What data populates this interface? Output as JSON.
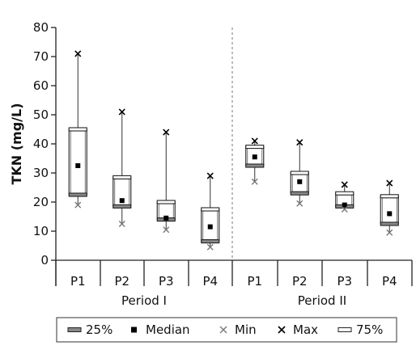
{
  "chart_data": {
    "type": "box",
    "ylabel": "TKN (mg/L)",
    "ylim": [
      0,
      80
    ],
    "yticks": [
      0,
      10,
      20,
      30,
      40,
      50,
      60,
      70,
      80
    ],
    "groups": [
      {
        "label": "Period I",
        "categories": [
          "P1",
          "P2",
          "P3",
          "P4"
        ]
      },
      {
        "label": "Period II",
        "categories": [
          "P1",
          "P2",
          "P3",
          "P4"
        ]
      }
    ],
    "boxes": [
      {
        "group": "Period I",
        "category": "P1",
        "min": 19.0,
        "q25": 22.5,
        "median": 32.5,
        "q75": 45.0,
        "max": 71.0
      },
      {
        "group": "Period I",
        "category": "P2",
        "min": 12.5,
        "q25": 18.5,
        "median": 20.5,
        "q75": 28.5,
        "max": 51.0
      },
      {
        "group": "Period I",
        "category": "P3",
        "min": 10.5,
        "q25": 14.0,
        "median": 14.5,
        "q75": 20.0,
        "max": 44.0
      },
      {
        "group": "Period I",
        "category": "P4",
        "min": 4.5,
        "q25": 6.5,
        "median": 11.5,
        "q75": 17.5,
        "max": 29.0
      },
      {
        "group": "Period II",
        "category": "P1",
        "min": 27.0,
        "q25": 32.5,
        "median": 35.5,
        "q75": 39.0,
        "max": 41.0
      },
      {
        "group": "Period II",
        "category": "P2",
        "min": 19.5,
        "q25": 23.0,
        "median": 27.0,
        "q75": 30.0,
        "max": 40.5
      },
      {
        "group": "Period II",
        "category": "P3",
        "min": 17.5,
        "q25": 18.5,
        "median": 19.0,
        "q75": 23.0,
        "max": 26.0
      },
      {
        "group": "Period II",
        "category": "P4",
        "min": 9.5,
        "q25": 12.5,
        "median": 16.0,
        "q75": 22.0,
        "max": 26.5
      }
    ],
    "legend": {
      "placement": "bottom",
      "items": [
        "25%",
        "Median",
        "Min",
        "Max",
        "75%"
      ]
    },
    "grid": false,
    "group_divider": "dashed"
  }
}
